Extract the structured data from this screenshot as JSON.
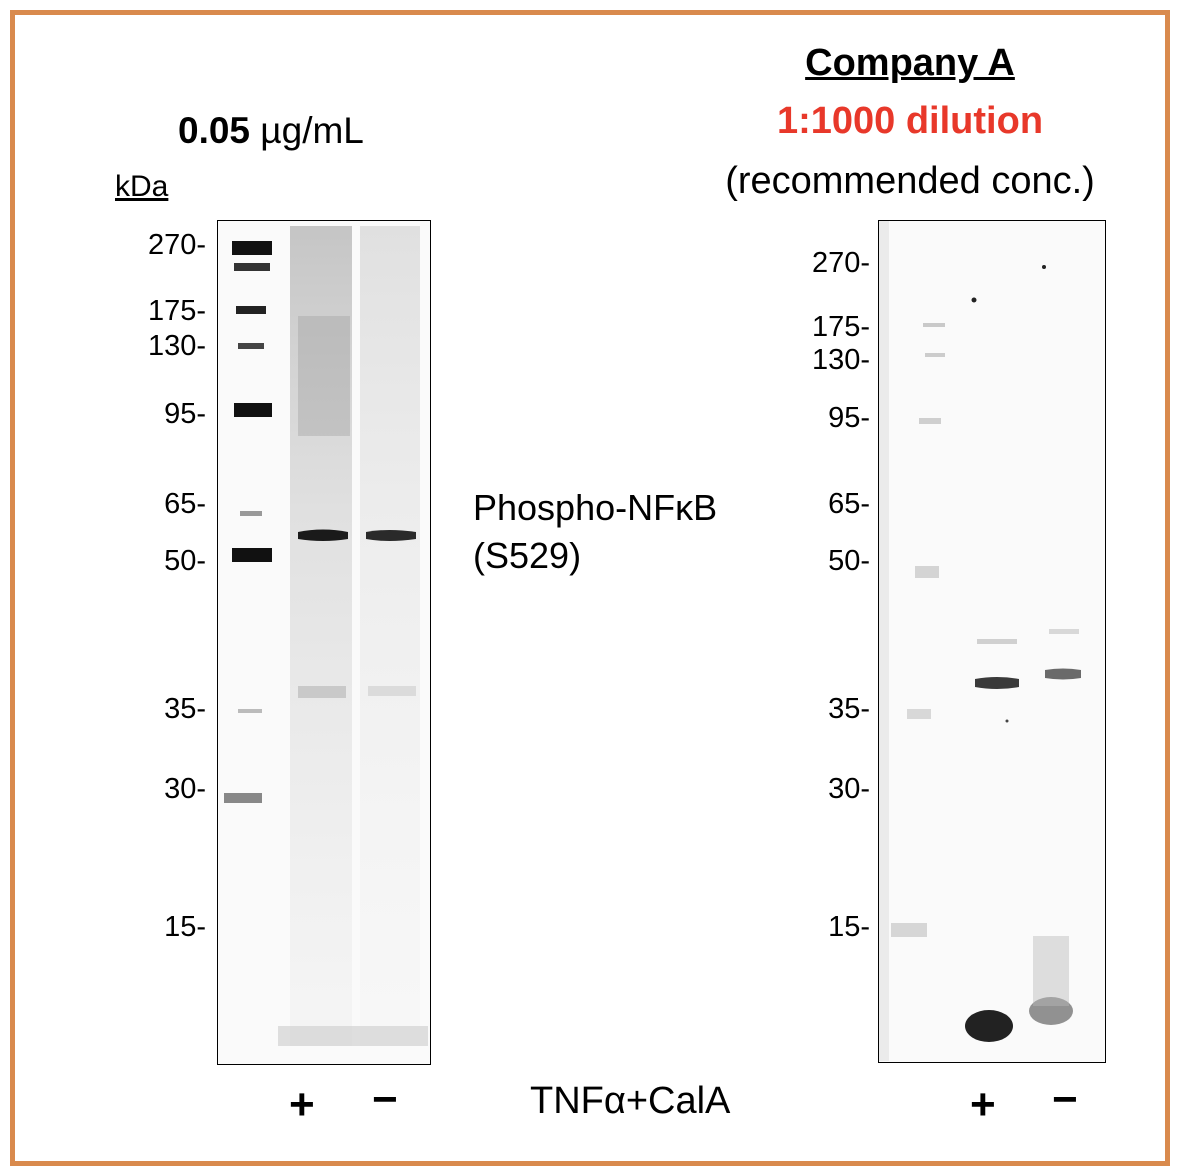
{
  "left_panel": {
    "concentration_bold": "0.05",
    "concentration_unit": "µg/mL",
    "kda_label": "kDa",
    "markers": [
      "270-",
      "175-",
      "130-",
      "95-",
      "65-",
      "50-",
      "35-",
      "30-",
      "15-"
    ],
    "lanes": [
      "+",
      "−"
    ]
  },
  "right_panel": {
    "company": "Company A",
    "dilution": "1:1000 dilution",
    "note": "(recommended conc.)",
    "markers": [
      "270-",
      "175-",
      "130-",
      "95-",
      "65-",
      "50-",
      "35-",
      "30-",
      "15-"
    ],
    "lanes": [
      "+",
      "−"
    ]
  },
  "target_line1": "Phospho-NFκB",
  "target_line2": "(S529)",
  "treatment": "TNFα+CalA",
  "colors": {
    "border": "#d98a4d",
    "dilution": "#e8382a"
  }
}
